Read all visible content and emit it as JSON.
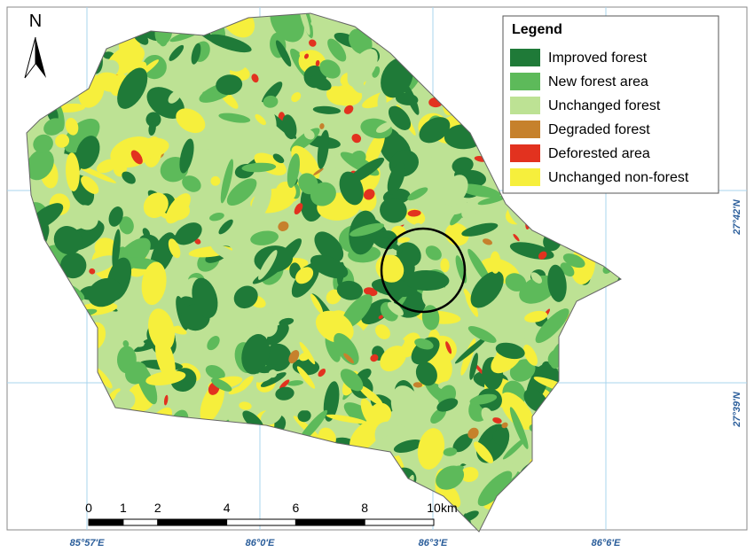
{
  "north": "N",
  "legend": {
    "title": "Legend",
    "items": [
      {
        "label": "Improved forest",
        "color": "#1f7a38"
      },
      {
        "label": "New forest area",
        "color": "#5dba5a"
      },
      {
        "label": "Unchanged forest",
        "color": "#bde294"
      },
      {
        "label": "Degraded forest",
        "color": "#c6812c"
      },
      {
        "label": "Deforested area",
        "color": "#e2321f"
      },
      {
        "label": "Unchanged non-forest",
        "color": "#f6ef3c"
      }
    ]
  },
  "lon_labels": [
    "85°57'E",
    "86°0'E",
    "86°3'E",
    "86°6'E"
  ],
  "lat_labels": [
    "27°42'N",
    "27°39'N"
  ],
  "scale_bar": {
    "ticks": [
      0,
      1,
      2,
      4,
      6,
      8,
      10
    ],
    "unit": "km"
  }
}
